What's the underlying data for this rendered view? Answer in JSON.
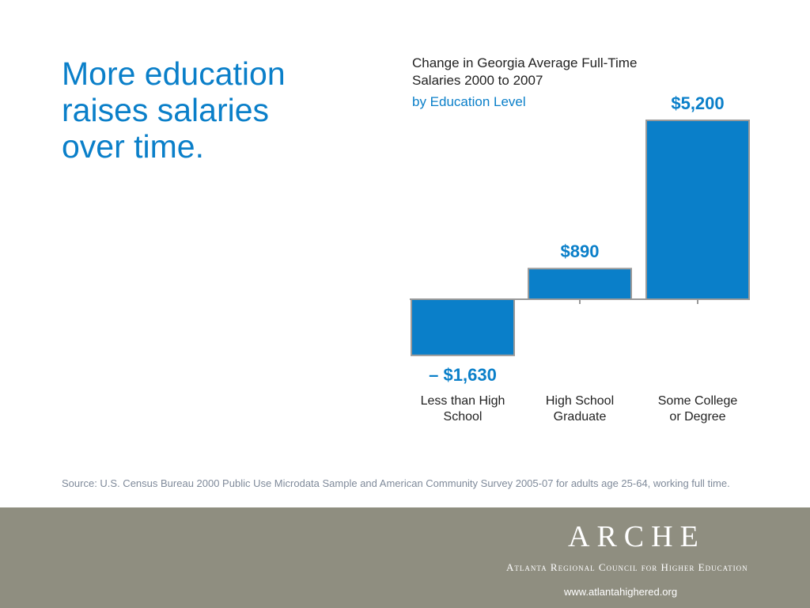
{
  "title": "More education raises salaries over time.",
  "source": "Source: U.S. Census Bureau 2000 Public Use Microdata Sample and American Community Survey 2005-07 for adults age 25-64, working full time.",
  "footer": {
    "logo": "ARCHE",
    "organization": "Atlanta Regional Council for Higher Education",
    "url": "www.atlantahighered.org"
  },
  "chart_data": {
    "type": "bar",
    "title": "Change in Georgia Average Full-Time Salaries 2000 to 2007",
    "subtitle": "by Education Level",
    "categories": [
      "Less than High School",
      "High School Graduate",
      "Some College or Degree"
    ],
    "values": [
      -1630,
      890,
      5200
    ],
    "value_labels": [
      "– $1,630",
      "$890",
      "$5,200"
    ],
    "color": "#0a7fc9"
  }
}
